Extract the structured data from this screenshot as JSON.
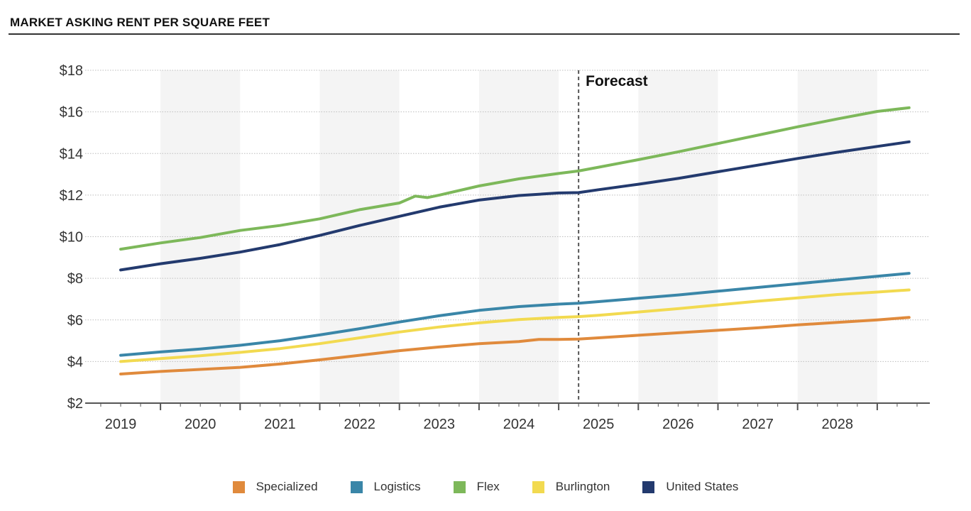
{
  "chart_data": {
    "type": "line",
    "title": "MARKET ASKING RENT PER SQUARE FEET",
    "xlabel": "",
    "ylabel": "",
    "x_categories": [
      "2019",
      "2020",
      "2021",
      "2022",
      "2023",
      "2024",
      "2025",
      "2026",
      "2027",
      "2028"
    ],
    "ylim": [
      2,
      18
    ],
    "y_ticks": [
      2,
      4,
      6,
      8,
      10,
      12,
      14,
      16,
      18
    ],
    "y_tick_labels": [
      "$2",
      "$4",
      "$6",
      "$8",
      "$10",
      "$12",
      "$14",
      "$16",
      "$18"
    ],
    "forecast_label": "Forecast",
    "forecast_start": 2024.75,
    "grid": true,
    "legend_position": "bottom",
    "series": [
      {
        "name": "Specialized",
        "color": "#E08A3C",
        "points": [
          [
            2019.0,
            3.4
          ],
          [
            2019.5,
            3.52
          ],
          [
            2020.0,
            3.62
          ],
          [
            2020.5,
            3.72
          ],
          [
            2021.0,
            3.88
          ],
          [
            2021.5,
            4.08
          ],
          [
            2022.0,
            4.3
          ],
          [
            2022.5,
            4.52
          ],
          [
            2023.0,
            4.7
          ],
          [
            2023.5,
            4.86
          ],
          [
            2024.0,
            4.96
          ],
          [
            2024.25,
            5.06
          ],
          [
            2024.5,
            5.06
          ],
          [
            2024.75,
            5.08
          ],
          [
            2025.0,
            5.14
          ],
          [
            2025.5,
            5.26
          ],
          [
            2026.0,
            5.38
          ],
          [
            2026.5,
            5.5
          ],
          [
            2027.0,
            5.62
          ],
          [
            2027.5,
            5.76
          ],
          [
            2028.0,
            5.88
          ],
          [
            2028.5,
            6.0
          ],
          [
            2028.9,
            6.12
          ]
        ]
      },
      {
        "name": "Logistics",
        "color": "#3A86A8",
        "points": [
          [
            2019.0,
            4.3
          ],
          [
            2019.5,
            4.46
          ],
          [
            2020.0,
            4.6
          ],
          [
            2020.5,
            4.78
          ],
          [
            2021.0,
            5.0
          ],
          [
            2021.5,
            5.28
          ],
          [
            2022.0,
            5.58
          ],
          [
            2022.5,
            5.9
          ],
          [
            2023.0,
            6.2
          ],
          [
            2023.5,
            6.46
          ],
          [
            2024.0,
            6.64
          ],
          [
            2024.5,
            6.76
          ],
          [
            2024.75,
            6.8
          ],
          [
            2025.0,
            6.88
          ],
          [
            2025.5,
            7.04
          ],
          [
            2026.0,
            7.2
          ],
          [
            2026.5,
            7.38
          ],
          [
            2027.0,
            7.56
          ],
          [
            2027.5,
            7.74
          ],
          [
            2028.0,
            7.92
          ],
          [
            2028.5,
            8.1
          ],
          [
            2028.9,
            8.24
          ]
        ]
      },
      {
        "name": "Flex",
        "color": "#7DB85A",
        "points": [
          [
            2019.0,
            9.4
          ],
          [
            2019.5,
            9.7
          ],
          [
            2020.0,
            9.96
          ],
          [
            2020.5,
            10.3
          ],
          [
            2021.0,
            10.54
          ],
          [
            2021.5,
            10.86
          ],
          [
            2022.0,
            11.3
          ],
          [
            2022.5,
            11.62
          ],
          [
            2022.7,
            11.95
          ],
          [
            2022.85,
            11.88
          ],
          [
            2023.0,
            12.0
          ],
          [
            2023.5,
            12.44
          ],
          [
            2024.0,
            12.78
          ],
          [
            2024.5,
            13.04
          ],
          [
            2024.75,
            13.16
          ],
          [
            2025.0,
            13.34
          ],
          [
            2025.5,
            13.7
          ],
          [
            2026.0,
            14.08
          ],
          [
            2026.5,
            14.48
          ],
          [
            2027.0,
            14.88
          ],
          [
            2027.5,
            15.28
          ],
          [
            2028.0,
            15.66
          ],
          [
            2028.5,
            16.02
          ],
          [
            2028.9,
            16.2
          ]
        ]
      },
      {
        "name": "Burlington",
        "color": "#F2DA50",
        "points": [
          [
            2019.0,
            4.0
          ],
          [
            2019.5,
            4.14
          ],
          [
            2020.0,
            4.28
          ],
          [
            2020.5,
            4.44
          ],
          [
            2021.0,
            4.62
          ],
          [
            2021.5,
            4.86
          ],
          [
            2022.0,
            5.14
          ],
          [
            2022.5,
            5.42
          ],
          [
            2023.0,
            5.66
          ],
          [
            2023.5,
            5.86
          ],
          [
            2024.0,
            6.02
          ],
          [
            2024.5,
            6.12
          ],
          [
            2024.75,
            6.16
          ],
          [
            2025.0,
            6.22
          ],
          [
            2025.5,
            6.38
          ],
          [
            2026.0,
            6.54
          ],
          [
            2026.5,
            6.72
          ],
          [
            2027.0,
            6.9
          ],
          [
            2027.5,
            7.06
          ],
          [
            2028.0,
            7.22
          ],
          [
            2028.5,
            7.34
          ],
          [
            2028.9,
            7.44
          ]
        ]
      },
      {
        "name": "United States",
        "color": "#233A6E",
        "points": [
          [
            2019.0,
            8.4
          ],
          [
            2019.5,
            8.7
          ],
          [
            2020.0,
            8.96
          ],
          [
            2020.5,
            9.26
          ],
          [
            2021.0,
            9.62
          ],
          [
            2021.5,
            10.06
          ],
          [
            2022.0,
            10.54
          ],
          [
            2022.5,
            10.98
          ],
          [
            2023.0,
            11.42
          ],
          [
            2023.5,
            11.76
          ],
          [
            2024.0,
            11.98
          ],
          [
            2024.5,
            12.1
          ],
          [
            2024.75,
            12.12
          ],
          [
            2025.0,
            12.26
          ],
          [
            2025.5,
            12.52
          ],
          [
            2026.0,
            12.8
          ],
          [
            2026.5,
            13.12
          ],
          [
            2027.0,
            13.44
          ],
          [
            2027.5,
            13.76
          ],
          [
            2028.0,
            14.06
          ],
          [
            2028.5,
            14.34
          ],
          [
            2028.9,
            14.56
          ]
        ]
      }
    ]
  }
}
